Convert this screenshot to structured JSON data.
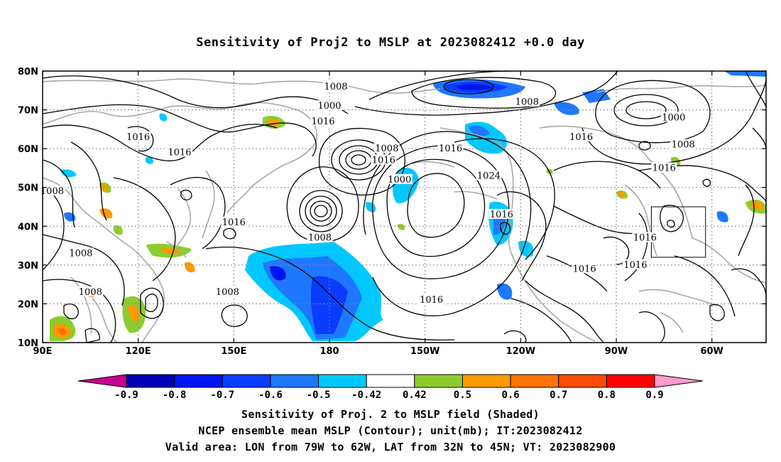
{
  "title": "Sensitivity of Proj2 to MSLP at 2023082412 +0.0 day",
  "map": {
    "x_ticks": [
      {
        "lon": 90,
        "label": "90E"
      },
      {
        "lon": 120,
        "label": "120E"
      },
      {
        "lon": 150,
        "label": "150E"
      },
      {
        "lon": 180,
        "label": "180"
      },
      {
        "lon": 210,
        "label": "150W"
      },
      {
        "lon": 240,
        "label": "120W"
      },
      {
        "lon": 270,
        "label": "90W"
      },
      {
        "lon": 300,
        "label": "60W"
      }
    ],
    "y_ticks": [
      {
        "lat": 80,
        "label": "80N"
      },
      {
        "lat": 70,
        "label": "70N"
      },
      {
        "lat": 60,
        "label": "60N"
      },
      {
        "lat": 50,
        "label": "50N"
      },
      {
        "lat": 40,
        "label": "40N"
      },
      {
        "lat": 30,
        "label": "30N"
      },
      {
        "lat": 20,
        "label": "20N"
      },
      {
        "lat": 10,
        "label": "10N"
      }
    ],
    "lon_range": [
      90,
      317
    ],
    "lat_range": [
      10,
      80
    ],
    "valid_area_box": {
      "lon": [
        281,
        298
      ],
      "lat": [
        32,
        45
      ]
    },
    "contour_labels": [
      {
        "text": "1000",
        "lon": 180,
        "lat": 71
      },
      {
        "text": "1008",
        "lon": 182,
        "lat": 76
      },
      {
        "text": "1016",
        "lon": 178,
        "lat": 67
      },
      {
        "text": "1016",
        "lon": 120,
        "lat": 63
      },
      {
        "text": "1016",
        "lon": 133,
        "lat": 59
      },
      {
        "text": "1016",
        "lon": 197,
        "lat": 57
      },
      {
        "text": "1008",
        "lon": 198,
        "lat": 60
      },
      {
        "text": "1000",
        "lon": 202,
        "lat": 52
      },
      {
        "text": "1016",
        "lon": 218,
        "lat": 60
      },
      {
        "text": "1024",
        "lon": 230,
        "lat": 53
      },
      {
        "text": "1016",
        "lon": 259,
        "lat": 63
      },
      {
        "text": "1008",
        "lon": 242,
        "lat": 72
      },
      {
        "text": "1000",
        "lon": 288,
        "lat": 68
      },
      {
        "text": "1008",
        "lon": 291,
        "lat": 61
      },
      {
        "text": "1016",
        "lon": 285,
        "lat": 55
      },
      {
        "text": "1016",
        "lon": 234,
        "lat": 43
      },
      {
        "text": "1016",
        "lon": 150,
        "lat": 41
      },
      {
        "text": "1008",
        "lon": 177,
        "lat": 37
      },
      {
        "text": "1016",
        "lon": 279,
        "lat": 37
      },
      {
        "text": "1016",
        "lon": 260,
        "lat": 29
      },
      {
        "text": "1016",
        "lon": 276,
        "lat": 30
      },
      {
        "text": "1016",
        "lon": 212,
        "lat": 21
      },
      {
        "text": "1008",
        "lon": 93,
        "lat": 49
      },
      {
        "text": "1008",
        "lon": 102,
        "lat": 33
      },
      {
        "text": "1008",
        "lon": 105,
        "lat": 23
      },
      {
        "text": "1008",
        "lon": 148,
        "lat": 23
      }
    ]
  },
  "colorbar": {
    "colors": [
      "#c80093",
      "#0000b4",
      "#0014f0",
      "#0a3cff",
      "#1e78ff",
      "#00c8ff",
      "#ffffff",
      "#8ccd2d",
      "#ff9900",
      "#ff7300",
      "#ff4b00",
      "#ff0000",
      "#ff9bcd"
    ],
    "labels": [
      "-0.9",
      "-0.8",
      "-0.7",
      "-0.6",
      "-0.5",
      "-0.42",
      "0.42",
      "0.5",
      "0.6",
      "0.7",
      "0.8",
      "0.9"
    ]
  },
  "captions": {
    "line1": "Sensitivity of Proj. 2 to MSLP field (Shaded)",
    "line2": "NCEP ensemble mean MSLP (Contour); unit(mb); IT:2023082412",
    "line3": "Valid area: LON from 79W to 62W, LAT from 32N to 45N; VT: 2023082900"
  }
}
